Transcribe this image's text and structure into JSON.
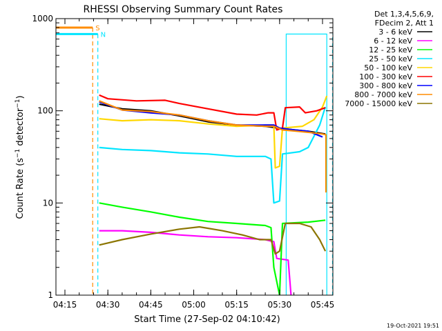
{
  "chart_data": {
    "type": "line",
    "title": "RHESSI Observing Summary Count Rates",
    "xlabel": "Start Time (27-Sep-02 04:10:42)",
    "ylabel": "Count Rate (s⁻¹ detector⁻¹)",
    "ylabel_parts": {
      "pre": "Count Rate (s",
      "sup1": "−1",
      "mid": " detector",
      "sup2": "−1",
      "post": ")"
    },
    "yscale": "log",
    "ylim": [
      1,
      1000
    ],
    "xlim_min": [
      10.7,
      0
    ],
    "x_ticks": [
      {
        "label": "04:15",
        "min": 15
      },
      {
        "label": "04:30",
        "min": 30
      },
      {
        "label": "04:45",
        "min": 45
      },
      {
        "label": "05:00",
        "min": 60
      },
      {
        "label": "05:15",
        "min": 75
      },
      {
        "label": "05:30",
        "min": 90
      },
      {
        "label": "05:45",
        "min": 105
      }
    ],
    "y_ticks": [
      {
        "label": "1",
        "value": 1
      },
      {
        "label": "10",
        "value": 10
      },
      {
        "label": "100",
        "value": 100
      },
      {
        "label": "1000",
        "value": 1000
      }
    ],
    "legend": {
      "placement": "right",
      "header": [
        "Det 1,3,4,5,6,9,",
        "FDecim 2, Att 1"
      ]
    },
    "series": [
      {
        "name": "3 - 6 keV",
        "color": "#000000",
        "points": [
          [
            27,
            118
          ],
          [
            35,
            105
          ],
          [
            45,
            100
          ],
          [
            55,
            88
          ],
          [
            65,
            76
          ],
          [
            75,
            70
          ],
          [
            85,
            68
          ],
          [
            88,
            66
          ],
          [
            91,
            64
          ],
          [
            95,
            62
          ],
          [
            100,
            60
          ],
          [
            106,
            56
          ]
        ]
      },
      {
        "name": "6 - 12 keV",
        "color": "#ff00ff",
        "points": [
          [
            27,
            5
          ],
          [
            35,
            5
          ],
          [
            45,
            4.8
          ],
          [
            55,
            4.5
          ],
          [
            65,
            4.3
          ],
          [
            75,
            4.2
          ],
          [
            85,
            4
          ],
          [
            88,
            3.8
          ],
          [
            89,
            2.5
          ],
          [
            93,
            2.4
          ],
          [
            94,
            1
          ]
        ]
      },
      {
        "name": "12 - 25 keV",
        "color": "#00ff00",
        "points": [
          [
            27,
            10
          ],
          [
            35,
            9
          ],
          [
            45,
            8
          ],
          [
            55,
            7
          ],
          [
            65,
            6.3
          ],
          [
            75,
            6
          ],
          [
            85,
            5.7
          ],
          [
            87,
            5.4
          ],
          [
            88,
            2
          ],
          [
            90,
            1
          ],
          [
            91,
            6
          ],
          [
            100,
            6.2
          ],
          [
            106,
            6.5
          ]
        ]
      },
      {
        "name": "25 - 50 keV",
        "color": "#00e5ff",
        "points": [
          [
            27,
            40
          ],
          [
            35,
            38
          ],
          [
            45,
            37
          ],
          [
            55,
            35
          ],
          [
            65,
            34
          ],
          [
            75,
            32
          ],
          [
            85,
            32
          ],
          [
            87,
            30
          ],
          [
            88,
            10
          ],
          [
            90,
            10.5
          ],
          [
            91,
            34
          ],
          [
            97,
            36
          ],
          [
            100,
            40
          ],
          [
            104,
            70
          ],
          [
            106,
            110
          ]
        ]
      },
      {
        "name": "50 - 100 keV",
        "color": "#ffd700",
        "points": [
          [
            27,
            82
          ],
          [
            35,
            78
          ],
          [
            45,
            80
          ],
          [
            55,
            78
          ],
          [
            65,
            72
          ],
          [
            75,
            68
          ],
          [
            85,
            70
          ],
          [
            88,
            70
          ],
          [
            88.5,
            24
          ],
          [
            90,
            25
          ],
          [
            91,
            65
          ],
          [
            98,
            68
          ],
          [
            102,
            80
          ],
          [
            105,
            110
          ],
          [
            106.5,
            145
          ]
        ]
      },
      {
        "name": "100 - 300 keV",
        "color": "#ff0000",
        "points": [
          [
            27,
            148
          ],
          [
            30,
            135
          ],
          [
            40,
            128
          ],
          [
            50,
            130
          ],
          [
            55,
            120
          ],
          [
            65,
            105
          ],
          [
            75,
            92
          ],
          [
            82,
            90
          ],
          [
            86,
            95
          ],
          [
            88,
            95
          ],
          [
            89,
            62
          ],
          [
            91,
            65
          ],
          [
            92,
            108
          ],
          [
            97,
            110
          ],
          [
            99,
            95
          ],
          [
            103,
            100
          ],
          [
            106,
            108
          ]
        ]
      },
      {
        "name": "300 - 800 keV",
        "color": "#0000ff",
        "points": [
          [
            27,
            125
          ],
          [
            35,
            102
          ],
          [
            45,
            95
          ],
          [
            55,
            90
          ],
          [
            65,
            78
          ],
          [
            75,
            70
          ],
          [
            85,
            70
          ],
          [
            88,
            70
          ],
          [
            90,
            65
          ],
          [
            95,
            62
          ],
          [
            100,
            60
          ],
          [
            105,
            52
          ]
        ]
      },
      {
        "name": "800 - 7000 keV",
        "color": "#ff8c00",
        "points": [
          [
            27,
            128
          ],
          [
            35,
            102
          ],
          [
            45,
            98
          ],
          [
            55,
            90
          ],
          [
            65,
            78
          ],
          [
            75,
            70
          ],
          [
            85,
            68
          ],
          [
            88,
            68
          ],
          [
            91,
            62
          ],
          [
            96,
            60
          ],
          [
            101,
            58
          ],
          [
            105,
            56
          ],
          [
            106.2,
            55
          ],
          [
            106.2,
            13
          ]
        ]
      },
      {
        "name": "7000 - 15000 keV",
        "color": "#8b7500",
        "points": [
          [
            27,
            3.5
          ],
          [
            35,
            4
          ],
          [
            45,
            4.6
          ],
          [
            55,
            5.2
          ],
          [
            62,
            5.5
          ],
          [
            70,
            5
          ],
          [
            77,
            4.5
          ],
          [
            83,
            4
          ],
          [
            87,
            4
          ],
          [
            88.5,
            2.8
          ],
          [
            90,
            3
          ],
          [
            92,
            6
          ],
          [
            97,
            6
          ],
          [
            101,
            5.5
          ],
          [
            104,
            4
          ],
          [
            106,
            3
          ]
        ]
      }
    ],
    "segments": [
      {
        "label": "S",
        "color": "#ff8c00",
        "bar_points": [
          [
            10.7,
            800
          ],
          [
            24.7,
            800
          ]
        ],
        "marker_min": 24.7,
        "marker_style": "dashed"
      },
      {
        "label": "N",
        "color": "#00e5ff",
        "bar_points": [
          [
            10.7,
            680
          ],
          [
            26.5,
            680
          ]
        ],
        "marker_min": 26.5,
        "marker_style": "dashed"
      }
    ],
    "extra_lines": [
      {
        "color": "#00e5ff",
        "style": "solid",
        "points": [
          [
            10.7,
            1
          ],
          [
            10.7,
            680
          ]
        ]
      },
      {
        "color": "#00e5ff",
        "style": "solid",
        "points": [
          [
            92.3,
            1
          ],
          [
            92.3,
            680
          ],
          [
            106.5,
            680
          ],
          [
            106.5,
            1
          ]
        ]
      },
      {
        "color": "#00e5ff",
        "style": "dashed",
        "points": [
          [
            108.5,
            1
          ],
          [
            108.5,
            680
          ]
        ]
      }
    ]
  },
  "footer": {
    "timestamp": "19-Oct-2021 19:51"
  }
}
